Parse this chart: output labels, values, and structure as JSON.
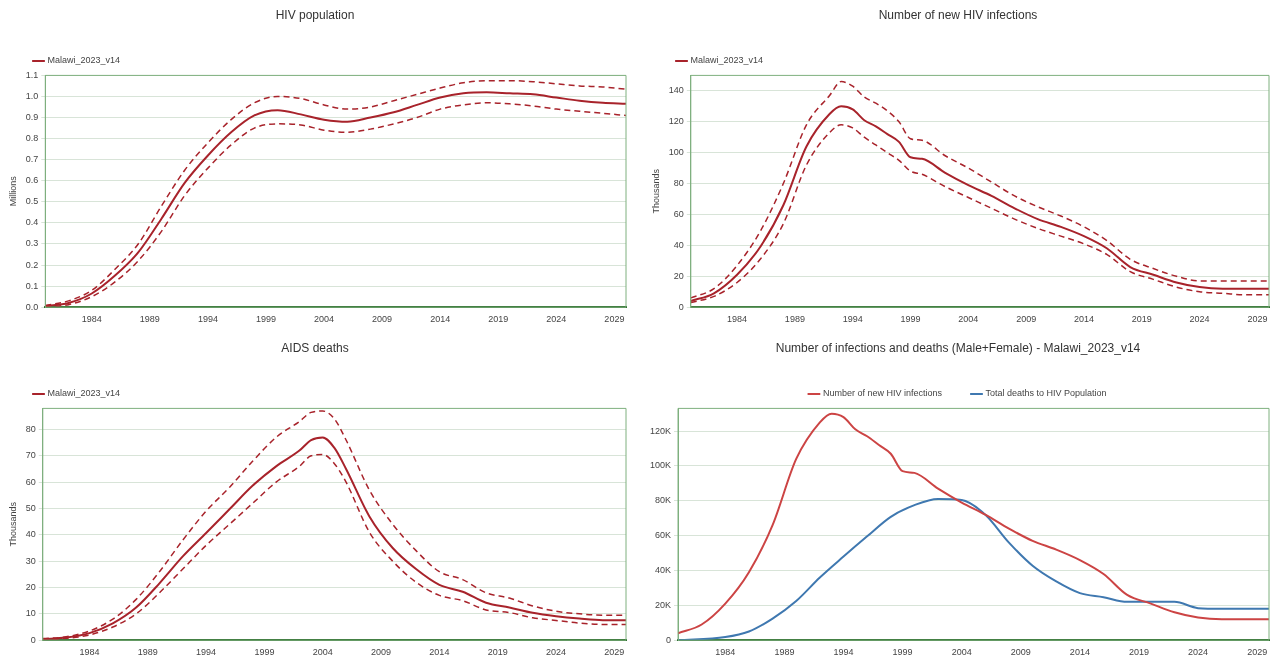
{
  "chart_data": [
    {
      "type": "line",
      "title": "HIV population",
      "ylabel": "Millions",
      "legend": "top left",
      "grid": "y",
      "xlim": [
        1980,
        2030
      ],
      "xticks": [
        1984,
        1989,
        1994,
        1999,
        2004,
        2009,
        2014,
        2019,
        2024,
        2029
      ],
      "ylim": [
        0,
        1.1
      ],
      "yticks": [
        {
          "value": 0,
          "label": "0.0"
        },
        0.1,
        0.2,
        0.3,
        0.4,
        0.5,
        0.6,
        0.7,
        0.8,
        0.9,
        {
          "value": 1,
          "label": "1.0"
        },
        1.1
      ],
      "x": [
        1980,
        1982,
        1984,
        1986,
        1988,
        1990,
        1992,
        1994,
        1996,
        1998,
        2000,
        2002,
        2004,
        2006,
        2008,
        2010,
        2012,
        2014,
        2016,
        2018,
        2020,
        2022,
        2024,
        2026,
        2028,
        2030
      ],
      "series": [
        {
          "name": "Malawi_2023_v14",
          "color": "#a8232b",
          "values": [
            0.005,
            0.02,
            0.065,
            0.15,
            0.26,
            0.42,
            0.59,
            0.72,
            0.83,
            0.91,
            0.935,
            0.915,
            0.89,
            0.88,
            0.9,
            0.925,
            0.96,
            0.995,
            1.015,
            1.02,
            1.015,
            1.01,
            0.995,
            0.98,
            0.97,
            0.965
          ]
        },
        {
          "color": "#a8232b",
          "line_style": "dashed",
          "values": [
            0.008,
            0.03,
            0.08,
            0.18,
            0.3,
            0.48,
            0.65,
            0.78,
            0.89,
            0.97,
            1.0,
            0.99,
            0.96,
            0.94,
            0.95,
            0.98,
            1.01,
            1.04,
            1.065,
            1.075,
            1.075,
            1.07,
            1.06,
            1.05,
            1.045,
            1.035
          ]
        },
        {
          "color": "#a8232b",
          "line_style": "dashed",
          "values": [
            0.003,
            0.012,
            0.05,
            0.12,
            0.22,
            0.36,
            0.53,
            0.66,
            0.77,
            0.85,
            0.87,
            0.865,
            0.84,
            0.83,
            0.845,
            0.87,
            0.9,
            0.94,
            0.96,
            0.97,
            0.965,
            0.955,
            0.94,
            0.93,
            0.92,
            0.91
          ]
        }
      ]
    },
    {
      "type": "line",
      "title": "Number of new HIV infections",
      "ylabel": "Thousands",
      "legend": "top left",
      "grid": "y",
      "xlim": [
        1980,
        2030
      ],
      "xticks": [
        1984,
        1989,
        1994,
        1999,
        2004,
        2009,
        2014,
        2019,
        2024,
        2029
      ],
      "ylim": [
        0,
        150
      ],
      "yticks": [
        0,
        20,
        40,
        60,
        80,
        100,
        120,
        140
      ],
      "x": [
        1980,
        1982,
        1984,
        1986,
        1988,
        1990,
        1992,
        1993,
        1994,
        1995,
        1996,
        1997,
        1998,
        1999,
        2000,
        2002,
        2004,
        2006,
        2008,
        2010,
        2012,
        2014,
        2016,
        2018,
        2020,
        2022,
        2024,
        2026,
        2028,
        2030
      ],
      "series": [
        {
          "name": "Malawi_2023_v14",
          "color": "#a8232b",
          "values": [
            4,
            9,
            21,
            39,
            66,
            104,
            125,
            130,
            128,
            121,
            117,
            112,
            107,
            97,
            96,
            87,
            79,
            72,
            64,
            57,
            52,
            46,
            38,
            26,
            21,
            16,
            13,
            12,
            12,
            12
          ]
        },
        {
          "color": "#a8232b",
          "line_style": "dashed",
          "values": [
            6,
            12,
            27,
            49,
            80,
            118,
            137,
            146,
            143,
            136,
            132,
            127,
            120,
            109,
            108,
            98,
            90,
            81,
            72,
            65,
            59,
            52,
            43,
            31,
            25,
            20,
            17,
            17,
            17,
            17
          ]
        },
        {
          "color": "#a8232b",
          "line_style": "dashed",
          "values": [
            3,
            7,
            16,
            31,
            54,
            92,
            113,
            118,
            116,
            110,
            105,
            100,
            95,
            88,
            86,
            78,
            71,
            64,
            57,
            51,
            46,
            41,
            34,
            23,
            18,
            13,
            10,
            9,
            8,
            8
          ]
        }
      ]
    },
    {
      "type": "line",
      "title": "AIDS deaths",
      "ylabel": "Thousands",
      "legend": "top left",
      "grid": "y",
      "xlim": [
        1980,
        2030
      ],
      "xticks": [
        1984,
        1989,
        1994,
        1999,
        2004,
        2009,
        2014,
        2019,
        2024,
        2029
      ],
      "ylim": [
        0,
        88
      ],
      "yticks": [
        0,
        10,
        20,
        30,
        40,
        50,
        60,
        70,
        80
      ],
      "x": [
        1980,
        1982,
        1984,
        1986,
        1988,
        1990,
        1992,
        1994,
        1996,
        1998,
        2000,
        2002,
        2003,
        2004,
        2005,
        2006,
        2008,
        2010,
        2012,
        2014,
        2016,
        2018,
        2020,
        2022,
        2024,
        2026,
        2028,
        2030
      ],
      "series": [
        {
          "name": "Malawi_2023_v14",
          "color": "#a8232b",
          "values": [
            0.4,
            1,
            2.7,
            6.4,
            12.4,
            21.6,
            31.8,
            40.7,
            49.7,
            58.7,
            66,
            72,
            76,
            77,
            73,
            65,
            47,
            35,
            27,
            21,
            18.4,
            14.2,
            12.4,
            10.4,
            9.1,
            8.2,
            7.6,
            7.6
          ]
        },
        {
          "color": "#a8232b",
          "line_style": "dashed",
          "values": [
            0.6,
            1.3,
            3.5,
            8,
            15.5,
            26,
            38,
            49,
            58,
            68,
            77,
            83,
            86.5,
            87,
            84,
            76,
            57,
            44,
            34,
            26,
            23,
            18,
            16,
            13,
            11,
            10,
            9.5,
            9.5
          ]
        },
        {
          "color": "#a8232b",
          "line_style": "dashed",
          "values": [
            0.2,
            0.7,
            2,
            5,
            10,
            18,
            27,
            36,
            44,
            52,
            60,
            66,
            70,
            70.5,
            67,
            60,
            41,
            30,
            22,
            17,
            15,
            11.5,
            10.5,
            8.5,
            7.5,
            6.5,
            6,
            6
          ]
        }
      ]
    },
    {
      "type": "line",
      "title": "Number of infections and deaths (Male+Female) - Malawi_2023_v14",
      "legend": "top",
      "grid": "y",
      "xlim": [
        1980,
        2030
      ],
      "xticks": [
        1984,
        1989,
        1994,
        1999,
        2004,
        2009,
        2014,
        2019,
        2024,
        2029
      ],
      "ylim": [
        0,
        133
      ],
      "yticks": [
        0,
        {
          "value": 20,
          "label": "20K"
        },
        {
          "value": 40,
          "label": "40K"
        },
        {
          "value": 60,
          "label": "60K"
        },
        {
          "value": 80,
          "label": "80K"
        },
        {
          "value": 100,
          "label": "100K"
        },
        {
          "value": 120,
          "label": "120K"
        }
      ],
      "series": [
        {
          "name": "Number of new HIV infections",
          "color": "#cc4444",
          "x": [
            1980,
            1982,
            1984,
            1986,
            1988,
            1990,
            1992,
            1993,
            1994,
            1995,
            1996,
            1997,
            1998,
            1999,
            2000,
            2002,
            2004,
            2006,
            2008,
            2010,
            2012,
            2014,
            2016,
            2018,
            2020,
            2022,
            2024,
            2026,
            2028,
            2030
          ],
          "values": [
            4,
            9,
            21,
            39,
            66,
            104,
            125,
            130,
            128,
            121,
            117,
            112,
            107,
            97,
            96,
            87,
            79,
            72,
            64,
            57,
            52,
            46,
            38,
            26,
            21,
            16,
            13,
            12,
            12,
            12
          ]
        },
        {
          "name": "Total deaths to HIV Population",
          "color": "#3f78b0",
          "x": [
            1980,
            1984,
            1986,
            1988,
            1990,
            1992,
            1994,
            1996,
            1998,
            2000,
            2002,
            2004,
            2006,
            2008,
            2010,
            2012,
            2014,
            2016,
            2018,
            2020,
            2022,
            2024,
            2026,
            2030
          ],
          "values": [
            0,
            1.8,
            5,
            12.4,
            22.5,
            36,
            48,
            59.6,
            70.8,
            77.5,
            81,
            80.4,
            72,
            56,
            42.7,
            33.7,
            27,
            24.7,
            22,
            22,
            22,
            18.4,
            18,
            18
          ]
        }
      ]
    }
  ]
}
